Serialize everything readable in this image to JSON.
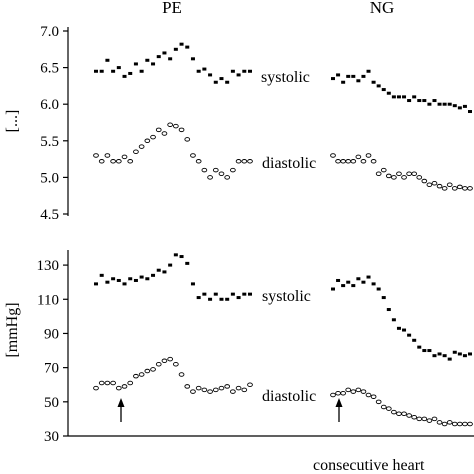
{
  "chart_data": [
    {
      "type": "scatter",
      "panel": "top",
      "group_labels": [
        "PE",
        "NG"
      ],
      "ylabel": "[...]",
      "yticks": [
        "7.0",
        "6.5",
        "6.0",
        "5.5",
        "5.0",
        "4.5"
      ],
      "ylim": [
        4.5,
        7.0
      ],
      "grid": false,
      "annotations": [
        "systolic",
        "diastolic",
        "systolic",
        "diastolic"
      ],
      "series": [
        {
          "name": "systolic",
          "group": "PE",
          "marker": "filled",
          "x": [
            1,
            2,
            3,
            4,
            5,
            6,
            7,
            8,
            9,
            10,
            11,
            12,
            13,
            14,
            15,
            16,
            17,
            18,
            19,
            20,
            21,
            22,
            23,
            24,
            25,
            26,
            27,
            28
          ],
          "values": [
            6.45,
            6.45,
            6.6,
            6.45,
            6.5,
            6.38,
            6.42,
            6.55,
            6.45,
            6.6,
            6.55,
            6.65,
            6.7,
            6.62,
            6.75,
            6.82,
            6.78,
            6.62,
            6.45,
            6.48,
            6.4,
            6.3,
            6.35,
            6.3,
            6.45,
            6.4,
            6.45,
            6.45
          ]
        },
        {
          "name": "diastolic",
          "group": "PE",
          "marker": "open",
          "x": [
            1,
            2,
            3,
            4,
            5,
            6,
            7,
            8,
            9,
            10,
            11,
            12,
            13,
            14,
            15,
            16,
            17,
            18,
            19,
            20,
            21,
            22,
            23,
            24,
            25,
            26,
            27,
            28
          ],
          "values": [
            5.3,
            5.22,
            5.3,
            5.22,
            5.22,
            5.28,
            5.22,
            5.35,
            5.42,
            5.5,
            5.55,
            5.65,
            5.6,
            5.72,
            5.7,
            5.65,
            5.52,
            5.3,
            5.22,
            5.1,
            5.0,
            5.1,
            5.05,
            5.0,
            5.1,
            5.22,
            5.22,
            5.22
          ]
        },
        {
          "name": "systolic",
          "group": "NG",
          "marker": "filled",
          "x": [
            1,
            2,
            3,
            4,
            5,
            6,
            7,
            8,
            9,
            10,
            11,
            12,
            13,
            14,
            15,
            16,
            17,
            18,
            19,
            20,
            21,
            22,
            23,
            24,
            25,
            26,
            27,
            28
          ],
          "values": [
            6.35,
            6.4,
            6.3,
            6.38,
            6.38,
            6.32,
            6.38,
            6.45,
            6.3,
            6.25,
            6.2,
            6.15,
            6.1,
            6.1,
            6.1,
            6.05,
            6.1,
            6.05,
            6.05,
            6.0,
            6.05,
            6.0,
            6.0,
            6.0,
            5.98,
            5.95,
            5.97,
            5.9
          ]
        },
        {
          "name": "diastolic",
          "group": "NG",
          "marker": "open",
          "x": [
            1,
            2,
            3,
            4,
            5,
            6,
            7,
            8,
            9,
            10,
            11,
            12,
            13,
            14,
            15,
            16,
            17,
            18,
            19,
            20,
            21,
            22,
            23,
            24,
            25,
            26,
            27,
            28
          ],
          "values": [
            5.3,
            5.22,
            5.22,
            5.22,
            5.22,
            5.28,
            5.22,
            5.3,
            5.22,
            5.05,
            5.1,
            5.02,
            5.0,
            5.05,
            5.0,
            5.05,
            5.05,
            5.0,
            4.95,
            4.9,
            4.92,
            4.88,
            4.85,
            4.9,
            4.85,
            4.87,
            4.85,
            4.85
          ]
        }
      ]
    },
    {
      "type": "scatter",
      "panel": "bottom",
      "ylabel": "[mmHg]",
      "yticks": [
        "130",
        "110",
        "90",
        "70",
        "50",
        "30"
      ],
      "ylim": [
        30,
        140
      ],
      "xlabel": "consecutive heart",
      "grid": false,
      "annotations": [
        "systolic",
        "diastolic",
        "systolic",
        "diastolic"
      ],
      "arrows": [
        "PE",
        "NG"
      ],
      "series": [
        {
          "name": "systolic",
          "group": "PE",
          "marker": "filled",
          "x": [
            1,
            2,
            3,
            4,
            5,
            6,
            7,
            8,
            9,
            10,
            11,
            12,
            13,
            14,
            15,
            16,
            17,
            18,
            19,
            20,
            21,
            22,
            23,
            24,
            25,
            26,
            27,
            28
          ],
          "values": [
            119,
            124,
            120,
            122,
            121,
            119,
            122,
            121,
            123,
            122,
            124,
            127,
            126,
            130,
            136,
            135,
            131,
            119,
            111,
            113,
            110,
            113,
            110,
            110,
            113,
            111,
            113,
            113
          ]
        },
        {
          "name": "diastolic",
          "group": "PE",
          "marker": "open",
          "x": [
            1,
            2,
            3,
            4,
            5,
            6,
            7,
            8,
            9,
            10,
            11,
            12,
            13,
            14,
            15,
            16,
            17,
            18,
            19,
            20,
            21,
            22,
            23,
            24,
            25,
            26,
            27,
            28
          ],
          "values": [
            58,
            61,
            61,
            61,
            58,
            59,
            61,
            65,
            66,
            68,
            69,
            72,
            74,
            75,
            72,
            66,
            59,
            56,
            58,
            57,
            56,
            57,
            58,
            59,
            56,
            58,
            57,
            60
          ]
        },
        {
          "name": "systolic",
          "group": "NG",
          "marker": "filled",
          "x": [
            1,
            2,
            3,
            4,
            5,
            6,
            7,
            8,
            9,
            10,
            11,
            12,
            13,
            14,
            15,
            16,
            17,
            18,
            19,
            20,
            21,
            22,
            23,
            24,
            25,
            26,
            27,
            28
          ],
          "values": [
            116,
            121,
            118,
            120,
            118,
            122,
            120,
            123,
            119,
            116,
            111,
            104,
            98,
            93,
            92,
            89,
            86,
            82,
            80,
            80,
            77,
            78,
            77,
            75,
            79,
            78,
            77,
            78
          ]
        },
        {
          "name": "diastolic",
          "group": "NG",
          "marker": "open",
          "x": [
            1,
            2,
            3,
            4,
            5,
            6,
            7,
            8,
            9,
            10,
            11,
            12,
            13,
            14,
            15,
            16,
            17,
            18,
            19,
            20,
            21,
            22,
            23,
            24,
            25,
            26,
            27,
            28
          ],
          "values": [
            54,
            55,
            55,
            57,
            56,
            57,
            56,
            54,
            53,
            50,
            47,
            46,
            44,
            43,
            43,
            42,
            41,
            40,
            40,
            39,
            40,
            38,
            37,
            38,
            37,
            37,
            37,
            37
          ]
        }
      ]
    }
  ]
}
